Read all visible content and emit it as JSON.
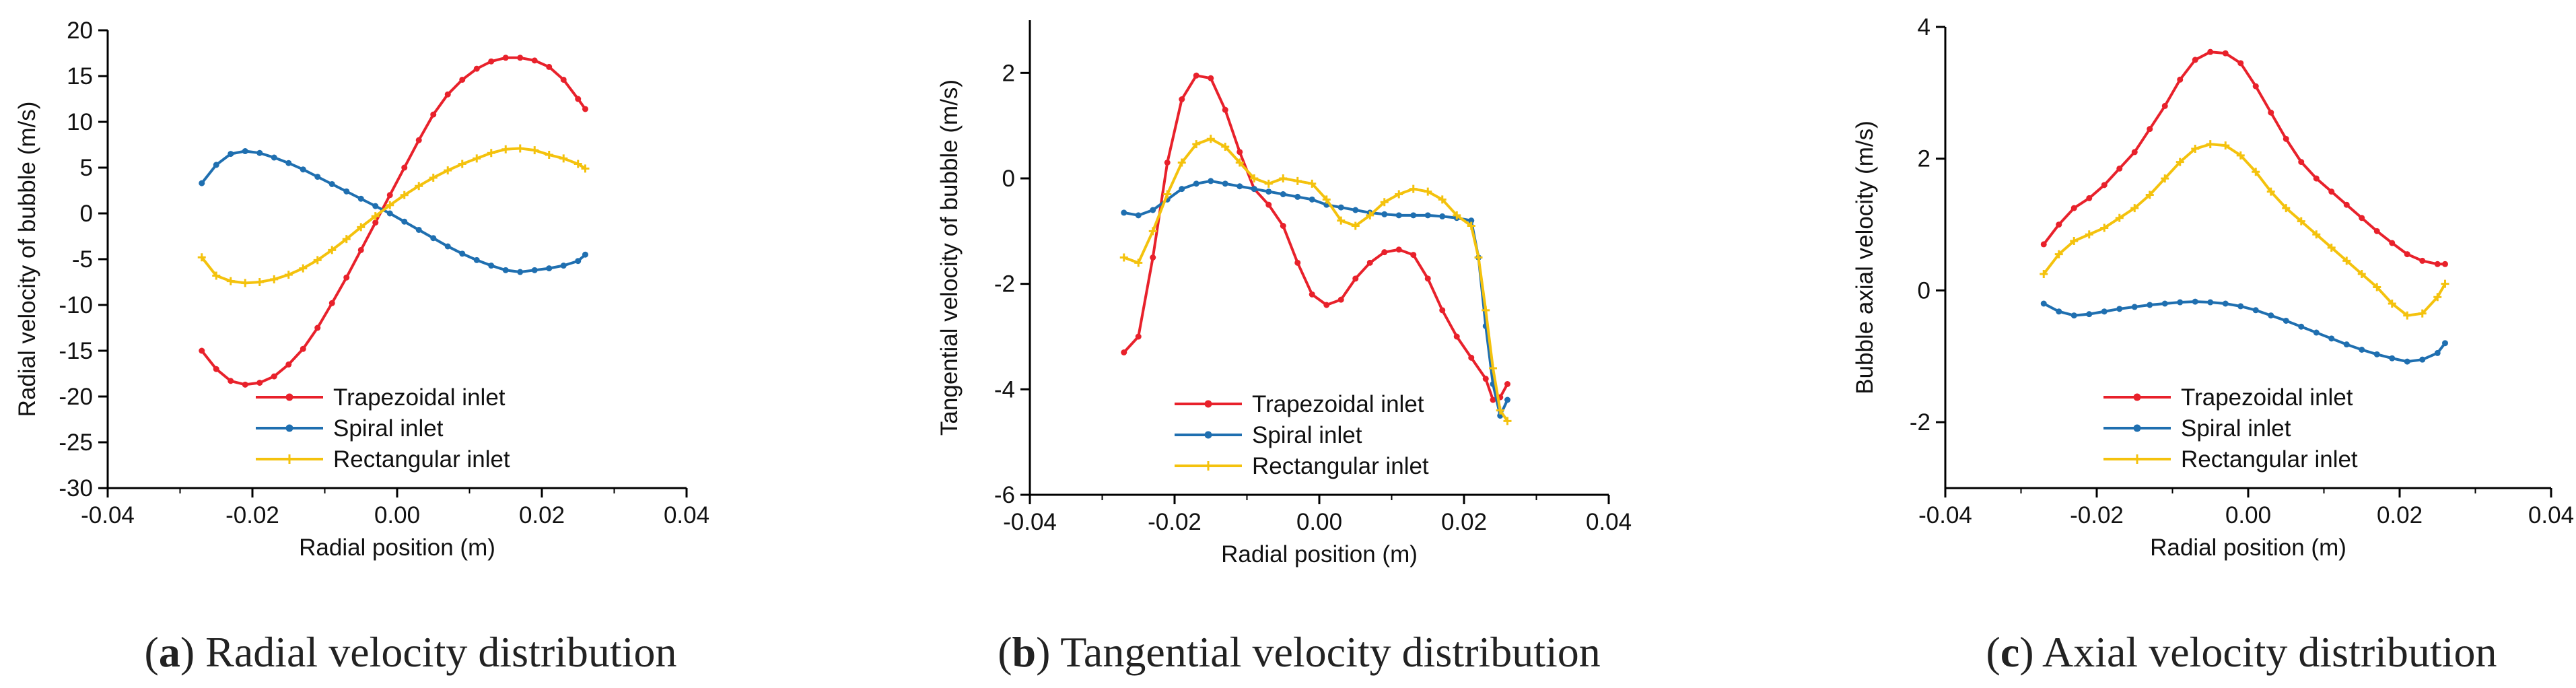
{
  "chart_data": [
    {
      "type": "line",
      "caption_letter": "a",
      "caption_open": "(",
      "caption_close": ")",
      "caption_text": " Radial velocity distribution",
      "xlabel": "Radial position (m)",
      "ylabel": "Radial velocity of bubble (m/s)",
      "xlim": [
        -0.04,
        0.04
      ],
      "ylim": [
        -30,
        20
      ],
      "xticks": [
        -0.04,
        -0.02,
        0.0,
        0.02,
        0.04
      ],
      "xtick_labels": [
        "-0.04",
        "-0.02",
        "0.00",
        "0.02",
        "0.04"
      ],
      "yticks": [
        -30,
        -25,
        -20,
        -15,
        -10,
        -5,
        0,
        5,
        10,
        15,
        20
      ],
      "ytick_labels": [
        "-30",
        "-25",
        "-20",
        "-15",
        "-10",
        "-5",
        "0",
        "5",
        "10",
        "15",
        "20"
      ],
      "legend_position": "bottom-center",
      "series": [
        {
          "name": "Trapezoidal inlet",
          "color": "#e8212b",
          "marker": "circle",
          "x": [
            -0.027,
            -0.025,
            -0.023,
            -0.021,
            -0.019,
            -0.017,
            -0.015,
            -0.013,
            -0.011,
            -0.009,
            -0.007,
            -0.005,
            -0.003,
            -0.001,
            0.001,
            0.003,
            0.005,
            0.007,
            0.009,
            0.011,
            0.013,
            0.015,
            0.017,
            0.019,
            0.021,
            0.023,
            0.025,
            0.026
          ],
          "y": [
            -15,
            -17,
            -18.3,
            -18.7,
            -18.5,
            -17.8,
            -16.5,
            -14.8,
            -12.5,
            -9.8,
            -7,
            -4,
            -1,
            2,
            5,
            8,
            10.8,
            13,
            14.6,
            15.8,
            16.6,
            17,
            17,
            16.7,
            16,
            14.6,
            12.5,
            11.4
          ]
        },
        {
          "name": "Spiral inlet",
          "color": "#1f6fb0",
          "marker": "circle",
          "x": [
            -0.027,
            -0.025,
            -0.023,
            -0.021,
            -0.019,
            -0.017,
            -0.015,
            -0.013,
            -0.011,
            -0.009,
            -0.007,
            -0.005,
            -0.003,
            -0.001,
            0.001,
            0.003,
            0.005,
            0.007,
            0.009,
            0.011,
            0.013,
            0.015,
            0.017,
            0.019,
            0.021,
            0.023,
            0.025,
            0.026
          ],
          "y": [
            3.3,
            5.3,
            6.5,
            6.8,
            6.6,
            6.1,
            5.5,
            4.8,
            4,
            3.2,
            2.4,
            1.6,
            0.8,
            0,
            -0.9,
            -1.8,
            -2.7,
            -3.6,
            -4.4,
            -5.1,
            -5.7,
            -6.2,
            -6.4,
            -6.2,
            -6,
            -5.7,
            -5.2,
            -4.5
          ]
        },
        {
          "name": "Rectangular inlet",
          "color": "#f4c20d",
          "marker": "plus",
          "x": [
            -0.027,
            -0.025,
            -0.023,
            -0.021,
            -0.019,
            -0.017,
            -0.015,
            -0.013,
            -0.011,
            -0.009,
            -0.007,
            -0.005,
            -0.003,
            -0.001,
            0.001,
            0.003,
            0.005,
            0.007,
            0.009,
            0.011,
            0.013,
            0.015,
            0.017,
            0.019,
            0.021,
            0.023,
            0.025,
            0.026
          ],
          "y": [
            -4.8,
            -6.8,
            -7.4,
            -7.6,
            -7.5,
            -7.2,
            -6.7,
            -6,
            -5.1,
            -4,
            -2.8,
            -1.5,
            -0.3,
            0.9,
            2,
            3,
            3.9,
            4.7,
            5.4,
            6,
            6.6,
            7,
            7.1,
            6.9,
            6.4,
            6,
            5.4,
            4.9
          ]
        }
      ]
    },
    {
      "type": "line",
      "caption_letter": "b",
      "caption_open": "(",
      "caption_close": ")",
      "caption_text": " Tangential velocity distribution",
      "xlabel": "Radial position (m)",
      "ylabel": "Tangential velocity of bubble (m/s)",
      "xlim": [
        -0.04,
        0.04
      ],
      "ylim": [
        -6,
        3
      ],
      "xticks": [
        -0.04,
        -0.02,
        0.0,
        0.02,
        0.04
      ],
      "xtick_labels": [
        "-0.04",
        "-0.02",
        "0.00",
        "0.02",
        "0.04"
      ],
      "yticks": [
        -6,
        -4,
        -2,
        0,
        2
      ],
      "ytick_labels": [
        "-6",
        "-4",
        "-2",
        "0",
        "2"
      ],
      "legend_position": "bottom-center",
      "series": [
        {
          "name": "Trapezoidal inlet",
          "color": "#e8212b",
          "marker": "circle",
          "x": [
            -0.027,
            -0.025,
            -0.023,
            -0.021,
            -0.019,
            -0.017,
            -0.015,
            -0.013,
            -0.011,
            -0.009,
            -0.007,
            -0.005,
            -0.003,
            -0.001,
            0.001,
            0.003,
            0.005,
            0.007,
            0.009,
            0.011,
            0.013,
            0.015,
            0.017,
            0.019,
            0.021,
            0.023,
            0.024,
            0.025,
            0.026
          ],
          "y": [
            -3.3,
            -3.0,
            -1.5,
            0.3,
            1.5,
            1.95,
            1.9,
            1.3,
            0.5,
            -0.2,
            -0.5,
            -0.9,
            -1.6,
            -2.2,
            -2.4,
            -2.3,
            -1.9,
            -1.6,
            -1.4,
            -1.35,
            -1.45,
            -1.9,
            -2.5,
            -3,
            -3.4,
            -3.8,
            -4.2,
            -4.15,
            -3.9
          ]
        },
        {
          "name": "Spiral inlet",
          "color": "#1f6fb0",
          "marker": "circle",
          "x": [
            -0.027,
            -0.025,
            -0.023,
            -0.021,
            -0.019,
            -0.017,
            -0.015,
            -0.013,
            -0.011,
            -0.009,
            -0.007,
            -0.005,
            -0.003,
            -0.001,
            0.001,
            0.003,
            0.005,
            0.007,
            0.009,
            0.011,
            0.013,
            0.015,
            0.017,
            0.019,
            0.021,
            0.022,
            0.023,
            0.024,
            0.025,
            0.026
          ],
          "y": [
            -0.65,
            -0.7,
            -0.6,
            -0.4,
            -0.2,
            -0.1,
            -0.05,
            -0.1,
            -0.15,
            -0.2,
            -0.25,
            -0.3,
            -0.35,
            -0.4,
            -0.5,
            -0.55,
            -0.6,
            -0.65,
            -0.68,
            -0.7,
            -0.7,
            -0.7,
            -0.72,
            -0.75,
            -0.8,
            -1.5,
            -2.8,
            -3.9,
            -4.5,
            -4.2
          ]
        },
        {
          "name": "Rectangular inlet",
          "color": "#f4c20d",
          "marker": "plus",
          "x": [
            -0.027,
            -0.025,
            -0.023,
            -0.021,
            -0.019,
            -0.017,
            -0.015,
            -0.013,
            -0.011,
            -0.009,
            -0.007,
            -0.005,
            -0.003,
            -0.001,
            0.001,
            0.003,
            0.005,
            0.007,
            0.009,
            0.011,
            0.013,
            0.015,
            0.017,
            0.019,
            0.021,
            0.022,
            0.023,
            0.024,
            0.025,
            0.026
          ],
          "y": [
            -1.5,
            -1.6,
            -1.0,
            -0.3,
            0.3,
            0.65,
            0.75,
            0.6,
            0.3,
            0.0,
            -0.1,
            0.0,
            -0.05,
            -0.1,
            -0.4,
            -0.8,
            -0.9,
            -0.7,
            -0.45,
            -0.3,
            -0.2,
            -0.25,
            -0.4,
            -0.7,
            -0.9,
            -1.5,
            -2.5,
            -3.6,
            -4.4,
            -4.6
          ]
        }
      ]
    },
    {
      "type": "line",
      "caption_letter": "c",
      "caption_open": "(",
      "caption_close": ")",
      "caption_text": " Axial velocity distribution",
      "xlabel": "Radial position (m)",
      "ylabel": "Bubble axial velocity (m/s)",
      "xlim": [
        -0.04,
        0.04
      ],
      "ylim": [
        -3,
        4
      ],
      "xticks": [
        -0.04,
        -0.02,
        0.0,
        0.02,
        0.04
      ],
      "xtick_labels": [
        "-0.04",
        "-0.02",
        "0.00",
        "0.02",
        "0.04"
      ],
      "yticks": [
        -2,
        0,
        2,
        4
      ],
      "ytick_labels": [
        "-2",
        "0",
        "2",
        "4"
      ],
      "legend_position": "bottom-center",
      "series": [
        {
          "name": "Trapezoidal inlet",
          "color": "#e8212b",
          "marker": "circle",
          "x": [
            -0.027,
            -0.025,
            -0.023,
            -0.021,
            -0.019,
            -0.017,
            -0.015,
            -0.013,
            -0.011,
            -0.009,
            -0.007,
            -0.005,
            -0.003,
            -0.001,
            0.001,
            0.003,
            0.005,
            0.007,
            0.009,
            0.011,
            0.013,
            0.015,
            0.017,
            0.019,
            0.021,
            0.023,
            0.025,
            0.026
          ],
          "y": [
            0.7,
            1.0,
            1.25,
            1.4,
            1.6,
            1.85,
            2.1,
            2.45,
            2.8,
            3.2,
            3.5,
            3.62,
            3.6,
            3.45,
            3.1,
            2.7,
            2.3,
            1.95,
            1.7,
            1.5,
            1.3,
            1.1,
            0.9,
            0.72,
            0.55,
            0.45,
            0.4,
            0.4
          ]
        },
        {
          "name": "Spiral inlet",
          "color": "#1f6fb0",
          "marker": "circle",
          "x": [
            -0.027,
            -0.025,
            -0.023,
            -0.021,
            -0.019,
            -0.017,
            -0.015,
            -0.013,
            -0.011,
            -0.009,
            -0.007,
            -0.005,
            -0.003,
            -0.001,
            0.001,
            0.003,
            0.005,
            0.007,
            0.009,
            0.011,
            0.013,
            0.015,
            0.017,
            0.019,
            0.021,
            0.023,
            0.025,
            0.026
          ],
          "y": [
            -0.2,
            -0.32,
            -0.38,
            -0.36,
            -0.32,
            -0.28,
            -0.25,
            -0.22,
            -0.2,
            -0.18,
            -0.17,
            -0.18,
            -0.2,
            -0.24,
            -0.3,
            -0.38,
            -0.46,
            -0.55,
            -0.64,
            -0.73,
            -0.82,
            -0.9,
            -0.97,
            -1.03,
            -1.08,
            -1.05,
            -0.95,
            -0.8
          ]
        },
        {
          "name": "Rectangular inlet",
          "color": "#f4c20d",
          "marker": "plus",
          "x": [
            -0.027,
            -0.025,
            -0.023,
            -0.021,
            -0.019,
            -0.017,
            -0.015,
            -0.013,
            -0.011,
            -0.009,
            -0.007,
            -0.005,
            -0.003,
            -0.001,
            0.001,
            0.003,
            0.005,
            0.007,
            0.009,
            0.011,
            0.013,
            0.015,
            0.017,
            0.019,
            0.021,
            0.023,
            0.025,
            0.026
          ],
          "y": [
            0.25,
            0.55,
            0.75,
            0.85,
            0.95,
            1.1,
            1.25,
            1.45,
            1.7,
            1.95,
            2.15,
            2.22,
            2.2,
            2.05,
            1.8,
            1.5,
            1.25,
            1.05,
            0.85,
            0.65,
            0.45,
            0.25,
            0.05,
            -0.2,
            -0.38,
            -0.35,
            -0.1,
            0.1
          ]
        }
      ]
    }
  ]
}
